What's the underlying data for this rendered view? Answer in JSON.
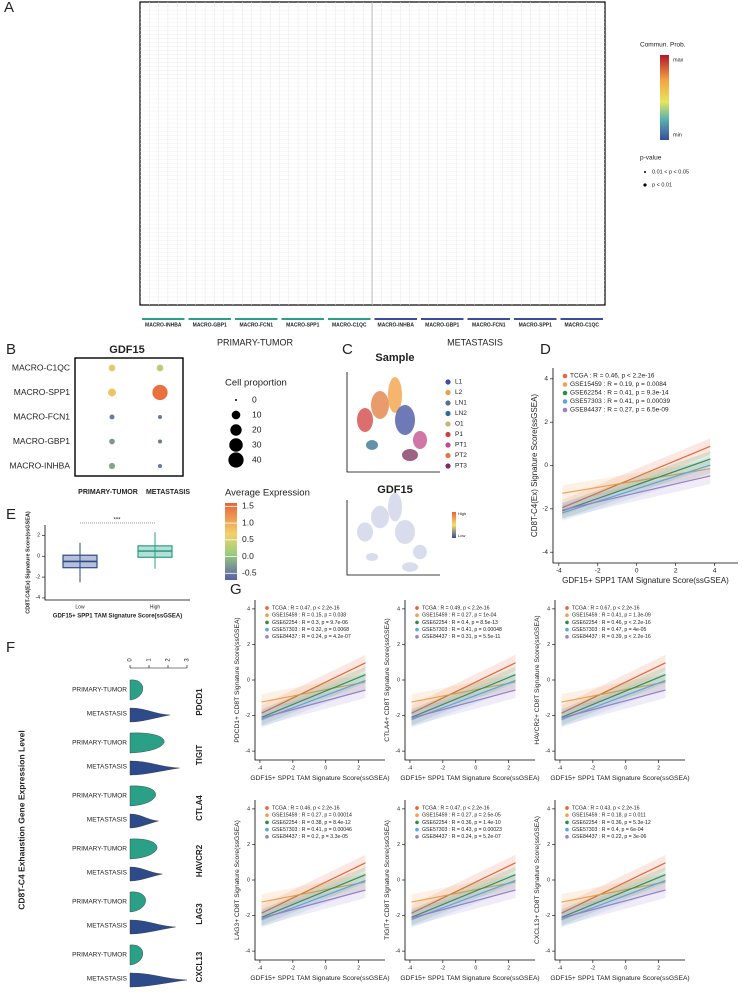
{
  "panel_labels": [
    "A",
    "B",
    "C",
    "D",
    "E",
    "F",
    "G"
  ],
  "panel_a": {
    "groups_primary": [
      "MACRO-INHBA",
      "MACRO-GBP1",
      "MACRO-FCN1",
      "MACRO-SPP1",
      "MACRO-C1QC"
    ],
    "groups_metastasis": [
      "MACRO-INHBA",
      "MACRO-GBP1",
      "MACRO-FCN1",
      "MACRO-SPP1",
      "MACRO-C1QC"
    ],
    "condition_primary": "PRIMARY-TUMOR",
    "condition_metastasis": "METASTASIS",
    "legend_title": "Commun. Prob.",
    "legend_max": "max",
    "legend_min": "min",
    "pvalue_title": "p-value",
    "pvalue_levels": [
      "0.01 < p < 0.05",
      "p < 0.01"
    ]
  },
  "panel_c": {
    "title_sample": "Sample",
    "samples": [
      {
        "name": "L1",
        "color": "#3e4da0"
      },
      {
        "name": "L2",
        "color": "#f39c3c"
      },
      {
        "name": "LN1",
        "color": "#5a6d8a"
      },
      {
        "name": "LN2",
        "color": "#2e6e8e"
      },
      {
        "name": "O1",
        "color": "#c7b27a"
      },
      {
        "name": "P1",
        "color": "#d23e3e"
      },
      {
        "name": "PT1",
        "color": "#c24a8a"
      },
      {
        "name": "PT2",
        "color": "#e37a3a"
      },
      {
        "name": "PT3",
        "color": "#7a2e5a"
      }
    ],
    "title_gene": "GDF15",
    "gene_high": "High",
    "gene_low": "Low"
  },
  "chart_data": [
    {
      "type": "dot",
      "title": "GDF15",
      "categories": [
        "MACRO-C1QC",
        "MACRO-SPP1",
        "MACRO-FCN1",
        "MACRO-GBP1",
        "MACRO-INHBA"
      ],
      "series": [
        {
          "name": "PRIMARY-TUMOR",
          "values": [
            0.5,
            0.8,
            -0.5,
            -0.3,
            -0.2
          ],
          "sizes": [
            5,
            8,
            2,
            3,
            4
          ]
        },
        {
          "name": "METASTASIS",
          "values": [
            0.3,
            1.5,
            -0.5,
            -0.5,
            -0.5
          ],
          "sizes": [
            5,
            40,
            1,
            1,
            1
          ]
        }
      ],
      "size_title": "Cell proportion",
      "size_ticks": [
        0,
        10,
        20,
        30,
        40
      ],
      "color_title": "Average Expression",
      "clim": [
        -0.7,
        1.6
      ],
      "cticks": [
        1.5,
        {
          "value": 1,
          "label": "1.0"
        },
        0.5,
        {
          "value": 0,
          "label": "0.0"
        },
        -0.5
      ]
    },
    {
      "type": "scatter",
      "xlabel": "GDF15+ SPP1 TAM Signature Score(ssGSEA)",
      "ylabel": "CD8T-C4(Ex) Signature Score(ssGSEA)",
      "xlim": [
        -4.3,
        5.2
      ],
      "xticks": [
        -4,
        -2,
        0,
        2,
        4
      ],
      "ylim": [
        -4.5,
        4.5
      ],
      "yticks": [
        -4,
        -2,
        0,
        2,
        4
      ],
      "series": [
        {
          "name": "TCGA : R = 0.46, p < 2.2e-16",
          "color": "#e8643a"
        },
        {
          "name": "GSE15459 : R = 0.19, p = 0.0084",
          "color": "#f0a050"
        },
        {
          "name": "GSE62254 : R = 0.41, p = 9.3e-14",
          "color": "#2e8b3e"
        },
        {
          "name": "GSE57303 : R = 0.41, p = 0.00039",
          "color": "#5aa8d8"
        },
        {
          "name": "GSE84437 : R = 0.27, p = 6.5e-09",
          "color": "#9a7ec8"
        }
      ]
    },
    {
      "type": "box",
      "xlabel": "GDF15+ SPP1 TAM Signature Score(ssGSEA)",
      "ylabel": "CD8T-C4(Ex) Signature Score(ssGSEA)",
      "annotation": "***",
      "categories": [
        "Low",
        "High"
      ],
      "colors": [
        "#2d4a8a",
        "#2aa087"
      ],
      "ylim": [
        -4.2,
        3
      ],
      "yticks": [
        -4,
        -2,
        0,
        2
      ],
      "whisker_low": [
        -2.5,
        -1.2
      ],
      "q1": [
        -1.1,
        -0.1
      ],
      "median": [
        -0.5,
        0.5
      ],
      "q3": [
        0.1,
        1.0
      ],
      "whisker_high": [
        1.3,
        2.3
      ]
    },
    {
      "type": "violin",
      "ylabel": "CD8T-C4 Exhaustion Gene Expression Level",
      "categories": [
        "PDCD1",
        "TIGIT",
        "CTLA4",
        "HAVCR2",
        "LAG3",
        "CXCL13"
      ],
      "groups": [
        "PRIMARY-TUMOR",
        "METASTASIS"
      ],
      "colors": [
        "#2aa087",
        "#2d4a8a"
      ],
      "xlim": [
        0,
        3
      ],
      "xticks": [
        0,
        1,
        2,
        3
      ]
    },
    {
      "type": "scatter",
      "xlabel": "GDF15+ SPP1 TAM Signature Score(ssGSEA)",
      "ylabel": "PDCD1+ CD8T Signature Score(ssGSEA)",
      "xlim": [
        -4.3,
        3.6
      ],
      "xticks": [
        -4,
        -2,
        0,
        2
      ],
      "ylim": [
        -4.5,
        4.5
      ],
      "yticks": [
        -4,
        -2,
        0,
        2,
        4
      ],
      "series": [
        {
          "name": "TCGA : R = 0.47, p < 2.2e-16",
          "color": "#e8643a"
        },
        {
          "name": "GSE15459 : R = 0.15, p = 0.038",
          "color": "#f0a050"
        },
        {
          "name": "GSE62254 : R = 0.3, p = 9.7e-06",
          "color": "#2e8b3e"
        },
        {
          "name": "GSE57303 : R = 0.32, p = 0.0068",
          "color": "#5aa8d8"
        },
        {
          "name": "GSE84437 : R = 0.24, p = 4.2e-07",
          "color": "#9a7ec8"
        }
      ]
    },
    {
      "type": "scatter",
      "xlabel": "GDF15+ SPP1 TAM Signature Score(ssGSEA)",
      "ylabel": "CTLA4+ CD8T Signature Score(ssGSEA)",
      "xlim": [
        -4.3,
        3.6
      ],
      "xticks": [
        -4,
        -2,
        0,
        2
      ],
      "ylim": [
        -4.5,
        4.5
      ],
      "yticks": [
        -4,
        -2,
        0,
        2,
        4
      ],
      "series": [
        {
          "name": "TCGA : R = 0.49, p < 2.2e-16",
          "color": "#e8643a"
        },
        {
          "name": "GSE15459 : R = 0.27, p = 1e-04",
          "color": "#f0a050"
        },
        {
          "name": "GSE62254 : R = 0.4, p = 8.5e-13",
          "color": "#2e8b3e"
        },
        {
          "name": "GSE57303 : R = 0.41, p = 0.00048",
          "color": "#5aa8d8"
        },
        {
          "name": "GSE84437 : R = 0.31, p = 5.5e-11",
          "color": "#9a7ec8"
        }
      ]
    },
    {
      "type": "scatter",
      "xlabel": "GDF15+ SPP1 TAM Signature Score(ssGSEA)",
      "ylabel": "HAVCR2+ CD8T Signature Score(ssGSEA)",
      "xlim": [
        -4.3,
        3.6
      ],
      "xticks": [
        -4,
        -2,
        0,
        2
      ],
      "ylim": [
        -4.5,
        4.5
      ],
      "yticks": [
        -4,
        -2,
        0,
        2,
        4
      ],
      "series": [
        {
          "name": "TCGA : R = 0.67, p < 2.2e-16",
          "color": "#e8643a"
        },
        {
          "name": "GSE15459 : R = 0.41, p = 1.3e-09",
          "color": "#f0a050"
        },
        {
          "name": "GSE62254 : R = 0.46, p < 2.2e-16",
          "color": "#2e8b3e"
        },
        {
          "name": "GSE57303 : R = 0.47, p = 4e-05",
          "color": "#5aa8d8"
        },
        {
          "name": "GSE84437 : R = 0.39, p < 2.2e-16",
          "color": "#9a7ec8"
        }
      ]
    },
    {
      "type": "scatter",
      "xlabel": "GDF15+ SPP1 TAM Signature Score(ssGSEA)",
      "ylabel": "LAG3+ CD8T Signature Score(ssGSEA)",
      "xlim": [
        -4.3,
        3.6
      ],
      "xticks": [
        -4,
        -2,
        0,
        2
      ],
      "ylim": [
        -4.5,
        4.5
      ],
      "yticks": [
        -4,
        -2,
        0,
        2,
        4
      ],
      "series": [
        {
          "name": "TCGA : R = 0.46, p < 2.2e-16",
          "color": "#e8643a"
        },
        {
          "name": "GSE15459 : R = 0.27, p = 0.00014",
          "color": "#f0a050"
        },
        {
          "name": "GSE62254 : R = 0.38, p = 8.4e-12",
          "color": "#2e8b3e"
        },
        {
          "name": "GSE57303 : R = 0.41, p = 0.00046",
          "color": "#5aa8d8"
        },
        {
          "name": "GSE84437 : R = 0.2, p = 3.3e-05",
          "color": "#9a7ec8"
        }
      ]
    },
    {
      "type": "scatter",
      "xlabel": "GDF15+ SPP1 TAM Signature Score(ssGSEA)",
      "ylabel": "TIGIT+ CD8T Signature Score(ssGSEA)",
      "xlim": [
        -4.3,
        3.6
      ],
      "xticks": [
        -4,
        -2,
        0,
        2
      ],
      "ylim": [
        -4.5,
        4.5
      ],
      "yticks": [
        -4,
        -2,
        0,
        2,
        4
      ],
      "series": [
        {
          "name": "TCGA : R = 0.47, p < 2.2e-16",
          "color": "#e8643a"
        },
        {
          "name": "GSE15459 : R = 0.27, p = 2.5e-05",
          "color": "#f0a050"
        },
        {
          "name": "GSE62254 : R = 0.36, p = 1.4e-10",
          "color": "#2e8b3e"
        },
        {
          "name": "GSE57303 : R = 0.43, p = 0.00023",
          "color": "#5aa8d8"
        },
        {
          "name": "GSE84437 : R = 0.24, p = 5.2e-07",
          "color": "#9a7ec8"
        }
      ]
    },
    {
      "type": "scatter",
      "xlabel": "GDF15+ SPP1 TAM Signature Score(ssGSEA)",
      "ylabel": "CXCL13+ CD8T Signature Score(ssGSEA)",
      "xlim": [
        -4.3,
        3.6
      ],
      "xticks": [
        -4,
        -2,
        0,
        2
      ],
      "ylim": [
        -4.5,
        4.5
      ],
      "yticks": [
        -4,
        -2,
        0,
        2,
        4
      ],
      "series": [
        {
          "name": "TCGA : R = 0.43, p < 2.2e-16",
          "color": "#e8643a"
        },
        {
          "name": "GSE15459 : R = 0.18, p = 0.011",
          "color": "#f0a050"
        },
        {
          "name": "GSE62254 : R = 0.36, p = 5.3e-12",
          "color": "#2e8b3e"
        },
        {
          "name": "GSE57303 : R = 0.4, p = 6e-04",
          "color": "#5aa8d8"
        },
        {
          "name": "GSE84437 : R = 0.22, p = 3e-06",
          "color": "#9a7ec8"
        }
      ]
    }
  ]
}
